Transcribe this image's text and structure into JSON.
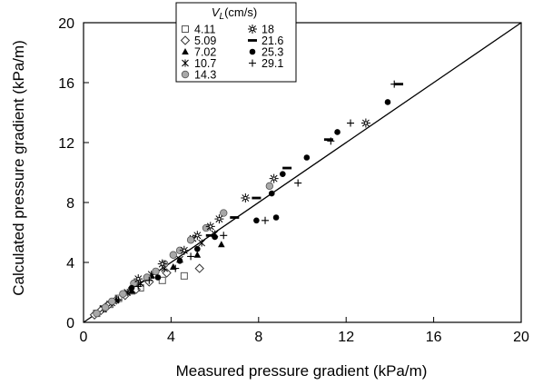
{
  "chart_data": {
    "type": "scatter",
    "xlabel": "Measured pressure gradient (kPa/m)",
    "ylabel": "Calculated pressure gradient (kPa/m)",
    "xlim": [
      0,
      20
    ],
    "ylim": [
      0,
      20
    ],
    "x_ticks": [
      "0",
      "4",
      "8",
      "12",
      "16",
      "20"
    ],
    "y_ticks": [
      "0",
      "4",
      "8",
      "12",
      "16",
      "20"
    ],
    "grid": false,
    "legend": {
      "title": "V_L(cm/s)",
      "title_main": "V",
      "title_sub": "L",
      "title_unit": "(cm/s)",
      "placement": "top-center"
    },
    "reference_line": {
      "type": "y=x"
    },
    "series": [
      {
        "name": "4.11",
        "marker": "square",
        "points": [
          [
            0.6,
            0.6
          ],
          [
            0.9,
            0.9
          ],
          [
            1.2,
            1.2
          ],
          [
            1.6,
            1.6
          ],
          [
            2.2,
            2.1
          ],
          [
            2.6,
            2.3
          ],
          [
            3.6,
            2.8
          ],
          [
            4.6,
            3.1
          ]
        ]
      },
      {
        "name": "5.09",
        "marker": "diamond",
        "points": [
          [
            0.5,
            0.5
          ],
          [
            0.8,
            0.8
          ],
          [
            1.1,
            1.1
          ],
          [
            1.5,
            1.5
          ],
          [
            1.9,
            1.8
          ],
          [
            2.4,
            2.2
          ],
          [
            3.0,
            2.7
          ],
          [
            3.8,
            3.3
          ],
          [
            5.3,
            3.6
          ]
        ]
      },
      {
        "name": "7.02",
        "marker": "triangle",
        "points": [
          [
            1.0,
            1.1
          ],
          [
            1.5,
            1.5
          ],
          [
            2.2,
            2.1
          ],
          [
            3.1,
            3.1
          ],
          [
            4.1,
            3.7
          ],
          [
            5.2,
            4.5
          ],
          [
            6.3,
            5.2
          ]
        ]
      },
      {
        "name": "10.7",
        "marker": "asterisk",
        "points": [
          [
            0.9,
            0.9
          ],
          [
            1.3,
            1.3
          ],
          [
            2.0,
            2.0
          ],
          [
            2.6,
            2.6
          ],
          [
            3.1,
            3.2
          ],
          [
            3.7,
            3.6
          ],
          [
            4.4,
            4.2
          ],
          [
            5.0,
            5.6
          ],
          [
            5.4,
            5.3
          ],
          [
            6.0,
            5.9
          ]
        ]
      },
      {
        "name": "14.3",
        "marker": "circle-gray",
        "points": [
          [
            0.6,
            0.6
          ],
          [
            1.0,
            1.0
          ],
          [
            1.3,
            1.4
          ],
          [
            1.8,
            1.9
          ],
          [
            2.3,
            2.6
          ],
          [
            2.9,
            3.0
          ],
          [
            3.3,
            3.4
          ],
          [
            3.7,
            3.9
          ],
          [
            4.1,
            4.5
          ],
          [
            4.4,
            4.8
          ],
          [
            4.9,
            5.5
          ],
          [
            5.6,
            6.3
          ],
          [
            6.4,
            7.3
          ],
          [
            8.5,
            9.1
          ]
        ]
      },
      {
        "name": "18",
        "marker": "star",
        "points": [
          [
            2.5,
            2.9
          ],
          [
            3.6,
            3.9
          ],
          [
            4.6,
            4.8
          ],
          [
            5.2,
            5.8
          ],
          [
            5.8,
            6.4
          ],
          [
            6.2,
            6.9
          ],
          [
            7.4,
            8.3
          ],
          [
            8.7,
            9.6
          ],
          [
            12.9,
            13.3
          ]
        ]
      },
      {
        "name": "21.6",
        "marker": "dash",
        "points": [
          [
            5.8,
            5.8
          ],
          [
            6.9,
            7.0
          ],
          [
            7.9,
            8.3
          ],
          [
            9.3,
            10.3
          ],
          [
            11.2,
            12.2
          ],
          [
            14.4,
            15.9
          ]
        ]
      },
      {
        "name": "25.3",
        "marker": "circle-black",
        "points": [
          [
            2.2,
            2.3
          ],
          [
            3.4,
            3.0
          ],
          [
            4.4,
            4.1
          ],
          [
            5.2,
            4.9
          ],
          [
            6.0,
            5.7
          ],
          [
            7.9,
            6.8
          ],
          [
            8.8,
            7.0
          ],
          [
            8.6,
            8.6
          ],
          [
            9.1,
            9.9
          ],
          [
            10.2,
            11.0
          ],
          [
            11.6,
            12.7
          ],
          [
            13.9,
            14.7
          ]
        ]
      },
      {
        "name": "29.1",
        "marker": "plus",
        "points": [
          [
            1.6,
            1.5
          ],
          [
            2.5,
            2.4
          ],
          [
            3.0,
            2.8
          ],
          [
            4.2,
            3.6
          ],
          [
            4.9,
            4.4
          ],
          [
            6.4,
            5.8
          ],
          [
            8.3,
            6.8
          ],
          [
            9.8,
            9.3
          ],
          [
            11.3,
            12.1
          ],
          [
            12.2,
            13.3
          ],
          [
            14.2,
            15.9
          ]
        ]
      }
    ]
  }
}
